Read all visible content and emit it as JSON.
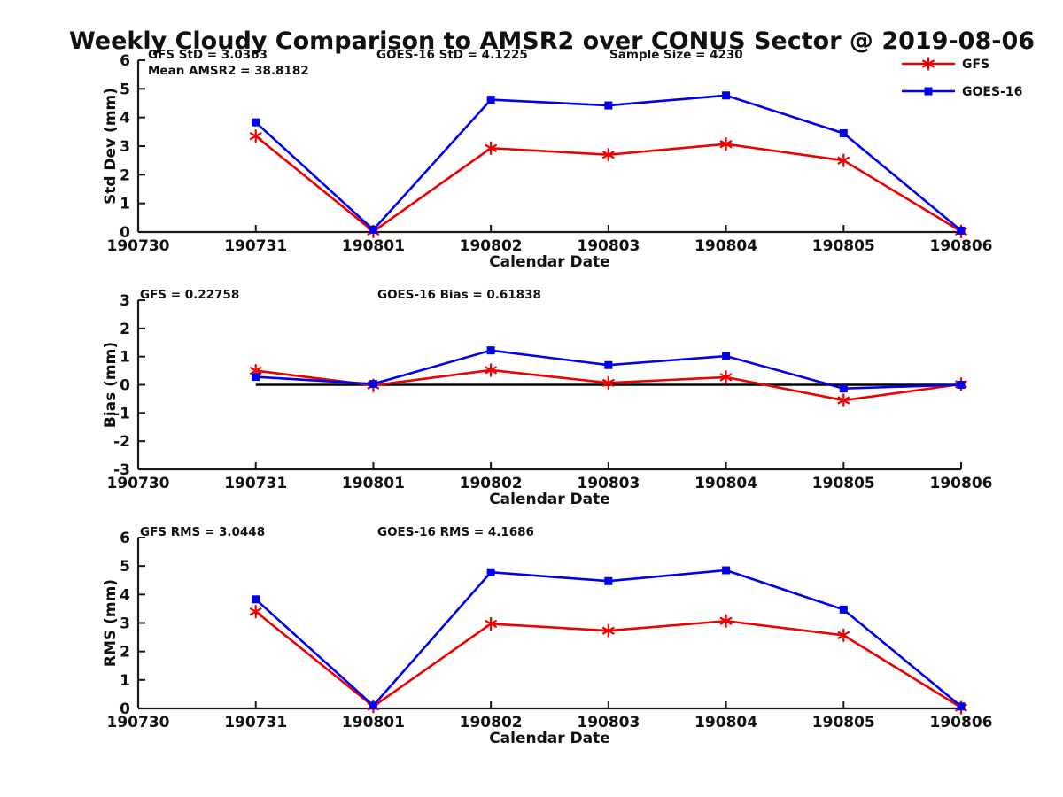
{
  "title": "Weekly Cloudy Comparison to AMSR2 over CONUS Sector @ 2019-08-06",
  "xlabel": "Calendar Date",
  "x_categories": [
    "190730",
    "190731",
    "190801",
    "190802",
    "190803",
    "190804",
    "190805",
    "190806"
  ],
  "colors": {
    "gfs": "#EE0000",
    "goes16": "#0000EE",
    "axis": "#1a1a1a",
    "zero_line": "#000000"
  },
  "legend": {
    "position": "top-right",
    "items": [
      {
        "label": "GFS",
        "color": "#EE0000",
        "marker": "asterisk"
      },
      {
        "label": "GOES-16",
        "color": "#0000EE",
        "marker": "square"
      }
    ]
  },
  "stats": {
    "gfs_std": 3.0363,
    "mean_amsr2": 38.8182,
    "goes16_std": 4.1225,
    "sample_size": 4230,
    "gfs_bias": 0.22758,
    "goes16_bias": 0.61838,
    "gfs_rms": 3.0448,
    "goes16_rms": 4.1686
  },
  "chart_data": [
    {
      "type": "line",
      "name": "std-dev",
      "ylabel": "Std Dev (mm)",
      "ylim": [
        0,
        6
      ],
      "yticks": [
        0,
        1,
        2,
        3,
        4,
        5,
        6
      ],
      "grid": false,
      "x": [
        "190731",
        "190801",
        "190802",
        "190803",
        "190804",
        "190805",
        "190806"
      ],
      "series": [
        {
          "name": "GFS",
          "color": "#EE0000",
          "marker": "asterisk",
          "values": [
            3.35,
            0.02,
            2.93,
            2.7,
            3.07,
            2.5,
            0.02
          ]
        },
        {
          "name": "GOES-16",
          "color": "#0000EE",
          "marker": "square",
          "values": [
            3.83,
            0.08,
            4.62,
            4.42,
            4.77,
            3.45,
            0.05
          ]
        }
      ],
      "annotations": [
        {
          "text": "GFS StD = 3.0363",
          "col": 0,
          "row": 0
        },
        {
          "text": "Mean AMSR2 = 38.8182",
          "col": 0,
          "row": 1
        },
        {
          "text": "GOES-16 StD = 4.1225",
          "col": 1,
          "row": 0
        },
        {
          "text": "Sample Size = 4230",
          "col": 2,
          "row": 0
        }
      ],
      "show_legend": true,
      "zero_line": false
    },
    {
      "type": "line",
      "name": "bias",
      "ylabel": "Bias (mm)",
      "ylim": [
        -3,
        3
      ],
      "yticks": [
        3,
        2,
        1,
        0,
        -1,
        -2,
        -3
      ],
      "grid": false,
      "x": [
        "190731",
        "190801",
        "190802",
        "190803",
        "190804",
        "190805",
        "190806"
      ],
      "series": [
        {
          "name": "GFS",
          "color": "#EE0000",
          "marker": "asterisk",
          "values": [
            0.5,
            -0.02,
            0.52,
            0.07,
            0.27,
            -0.55,
            0.02
          ]
        },
        {
          "name": "GOES-16",
          "color": "#0000EE",
          "marker": "square",
          "values": [
            0.28,
            0.03,
            1.22,
            0.7,
            1.02,
            -0.13,
            0.0
          ]
        }
      ],
      "annotations": [
        {
          "text": "GFS = 0.22758",
          "col": 0,
          "row": 0
        },
        {
          "text": "GOES-16 Bias  = 0.61838",
          "col": 1,
          "row": 0
        }
      ],
      "show_legend": false,
      "zero_line": true
    },
    {
      "type": "line",
      "name": "rms",
      "ylabel": "RMS (mm)",
      "ylim": [
        0,
        6
      ],
      "yticks": [
        0,
        1,
        2,
        3,
        4,
        5,
        6
      ],
      "grid": false,
      "x": [
        "190731",
        "190801",
        "190802",
        "190803",
        "190804",
        "190805",
        "190806"
      ],
      "series": [
        {
          "name": "GFS",
          "color": "#EE0000",
          "marker": "asterisk",
          "values": [
            3.4,
            0.07,
            2.97,
            2.73,
            3.07,
            2.57,
            0.03
          ]
        },
        {
          "name": "GOES-16",
          "color": "#0000EE",
          "marker": "square",
          "values": [
            3.83,
            0.1,
            4.78,
            4.47,
            4.85,
            3.47,
            0.07
          ]
        }
      ],
      "annotations": [
        {
          "text": "GFS RMS = 3.0448",
          "col": 0,
          "row": 0
        },
        {
          "text": "GOES-16 RMS = 4.1686",
          "col": 1,
          "row": 0
        }
      ],
      "show_legend": false,
      "zero_line": false
    }
  ]
}
